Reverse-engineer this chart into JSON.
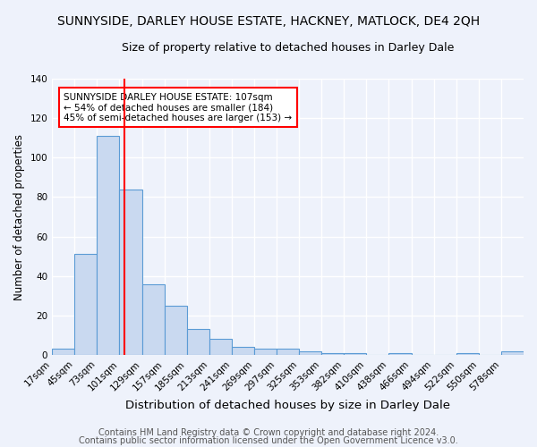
{
  "title": "SUNNYSIDE, DARLEY HOUSE ESTATE, HACKNEY, MATLOCK, DE4 2QH",
  "subtitle": "Size of property relative to detached houses in Darley Dale",
  "xlabel": "Distribution of detached houses by size in Darley Dale",
  "ylabel": "Number of detached properties",
  "bar_labels": [
    "17sqm",
    "45sqm",
    "73sqm",
    "101sqm",
    "129sqm",
    "157sqm",
    "185sqm",
    "213sqm",
    "241sqm",
    "269sqm",
    "297sqm",
    "325sqm",
    "353sqm",
    "382sqm",
    "410sqm",
    "438sqm",
    "466sqm",
    "494sqm",
    "522sqm",
    "550sqm",
    "578sqm"
  ],
  "bar_values": [
    3,
    51,
    111,
    84,
    36,
    25,
    13,
    8,
    4,
    3,
    3,
    2,
    1,
    1,
    0,
    1,
    0,
    0,
    1,
    0,
    2
  ],
  "bar_color": "#c9d9f0",
  "bar_edge_color": "#5b9bd5",
  "vline_color": "red",
  "ylim": [
    0,
    140
  ],
  "annotation_text": "SUNNYSIDE DARLEY HOUSE ESTATE: 107sqm\n← 54% of detached houses are smaller (184)\n45% of semi-detached houses are larger (153) →",
  "annotation_box_color": "white",
  "annotation_box_edge": "red",
  "footer1": "Contains HM Land Registry data © Crown copyright and database right 2024.",
  "footer2": "Contains public sector information licensed under the Open Government Licence v3.0.",
  "background_color": "#eef2fb",
  "grid_color": "white",
  "title_fontsize": 10,
  "subtitle_fontsize": 9,
  "xlabel_fontsize": 9.5,
  "ylabel_fontsize": 8.5,
  "tick_fontsize": 7.5,
  "footer_fontsize": 7,
  "annot_fontsize": 7.5
}
